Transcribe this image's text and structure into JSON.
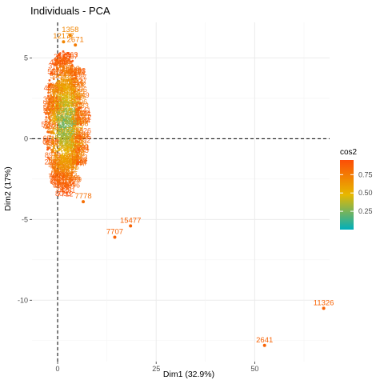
{
  "chart_data": {
    "type": "scatter",
    "title": "Individuals - PCA",
    "xlabel": "Dim1 (32.9%)",
    "ylabel": "Dim2 (17%)",
    "xlim": [
      -6.5,
      69
    ],
    "ylim": [
      -13.8,
      7.2
    ],
    "x_ticks": [
      0,
      25,
      50
    ],
    "y_ticks": [
      -10,
      -5,
      0,
      5
    ],
    "x_tick_labels": [
      "0",
      "25",
      "50"
    ],
    "y_tick_labels": [
      "-10",
      "-5",
      "0",
      "5"
    ],
    "grid": true,
    "reference_lines": {
      "x": 0,
      "y": 0,
      "style": "dashed"
    },
    "cluster": {
      "x_range": [
        -3,
        6
      ],
      "y_range": [
        -3.5,
        5.5
      ],
      "note": "dense overlapping cloud of many labeled points"
    },
    "labeled_points": [
      {
        "label": "11326",
        "x": 67.5,
        "y": -10.5,
        "cos2": 0.85
      },
      {
        "label": "2641",
        "x": 52.5,
        "y": -12.8,
        "cos2": 0.85
      },
      {
        "label": "15477",
        "x": 18.5,
        "y": -5.4,
        "cos2": 0.85
      },
      {
        "label": "7707",
        "x": 14.5,
        "y": -6.1,
        "cos2": 0.85
      },
      {
        "label": "7778",
        "x": 6.5,
        "y": -3.9,
        "cos2": 0.8
      },
      {
        "label": "12177",
        "x": 1.5,
        "y": 6.0,
        "cos2": 0.7
      },
      {
        "label": "1358",
        "x": 3.2,
        "y": 6.4,
        "cos2": 0.7
      },
      {
        "label": "2671",
        "x": 4.5,
        "y": 5.8,
        "cos2": 0.75
      }
    ],
    "legend": {
      "title": "cos2",
      "position": "right",
      "ticks": [
        0.75,
        0.5,
        0.25
      ],
      "tick_labels": [
        "0.75",
        "0.50",
        "0.25"
      ],
      "range": [
        0.0,
        0.95
      ],
      "colors": [
        "#00AFBB",
        "#E7B800",
        "#FC4E07"
      ]
    }
  }
}
